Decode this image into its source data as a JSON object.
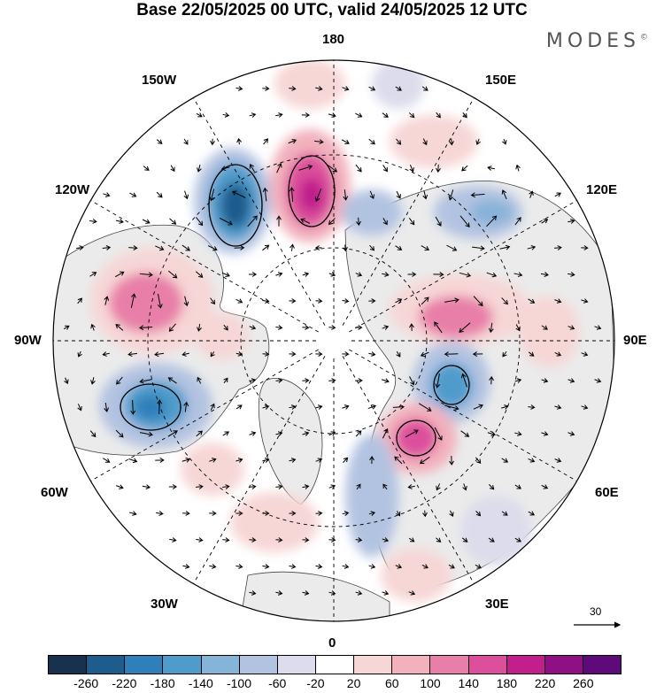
{
  "title": "Base 22/05/2025 00 UTC, valid 24/05/2025 12 UTC",
  "brand": "MODES",
  "brand_mark": "©",
  "longitude_labels": {
    "top": "180",
    "bottom": "0",
    "left": "90W",
    "right": "90E",
    "upper_left_1": "150W",
    "upper_left_2": "120W",
    "upper_right_1": "150E",
    "upper_right_2": "120E",
    "lower_left_1": "60W",
    "lower_left_2": "30W",
    "lower_right_1": "60E",
    "lower_right_2": "30E"
  },
  "wind_scale_label": "30",
  "colorbar": {
    "colors": [
      "#17314f",
      "#1f5c8e",
      "#2f7fba",
      "#4f9ccc",
      "#86b3d8",
      "#b2c3e1",
      "#dcdcec",
      "#ffffff",
      "#f7d6d6",
      "#f2b1bd",
      "#e87fa8",
      "#dc4f9c",
      "#c01f8c",
      "#8f0f85",
      "#5e0a7a"
    ],
    "tick_labels": [
      "-260",
      "-220",
      "-180",
      "-140",
      "-100",
      "-60",
      "-20",
      "20",
      "60",
      "100",
      "140",
      "180",
      "220",
      "260"
    ]
  },
  "anomaly_centers": [
    {
      "name": "anomaly-negative-nw-pacific",
      "value": -220
    },
    {
      "name": "anomaly-positive-north-pacific",
      "value": 220
    },
    {
      "name": "anomaly-positive-canada",
      "value": 140
    },
    {
      "name": "anomaly-negative-atlantic",
      "value": -180
    },
    {
      "name": "anomaly-positive-siberia",
      "value": 140
    },
    {
      "name": "anomaly-negative-central-asia",
      "value": -140
    },
    {
      "name": "anomaly-positive-scandinavia",
      "value": 180
    },
    {
      "name": "anomaly-negative-east-siberia",
      "value": -100
    }
  ]
}
